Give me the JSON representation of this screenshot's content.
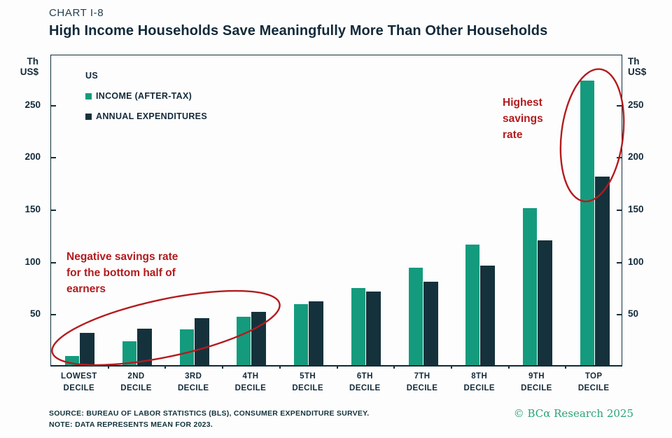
{
  "header": {
    "eyebrow": "CHART I-8",
    "title": "High Income Households Save Meaningfully More Than Other Households"
  },
  "axis": {
    "unit_line1": "Th",
    "unit_line2": "US$"
  },
  "legend": {
    "region": "US",
    "items": [
      {
        "label": "INCOME (AFTER-TAX)",
        "color": "#149b7d"
      },
      {
        "label": "ANNUAL EXPENDITURES",
        "color": "#15323c"
      }
    ]
  },
  "annotations": {
    "left_lines": [
      "Negative savings rate",
      "for the bottom half of",
      "earners"
    ],
    "right_lines": [
      "Highest",
      "savings",
      "rate"
    ]
  },
  "footer": {
    "source": "SOURCE: BUREAU OF LABOR STATISTICS (BLS), CONSUMER EXPENDITURE SURVEY.",
    "note": "NOTE: DATA REPRESENTS MEAN FOR 2023.",
    "copyright": "© BCα Research 2025"
  },
  "colors": {
    "income_green": "#149b7d",
    "expenditure_navy": "#15323c",
    "annotation_red": "#b31b1e",
    "brand_green": "#2aa477",
    "text_navy": "#132a3a"
  },
  "chart_data": {
    "type": "bar",
    "title": "High Income Households Save Meaningfully More Than Other Households",
    "xlabel": "",
    "ylabel": "Th US$",
    "ylim": [
      0,
      298
    ],
    "yticks": [
      50,
      100,
      150,
      200,
      250
    ],
    "grid": false,
    "legend_position": "top-left",
    "categories": [
      "LOWEST DECILE",
      "2ND DECILE",
      "3RD DECILE",
      "4TH DECILE",
      "5TH DECILE",
      "6TH DECILE",
      "7TH DECILE",
      "8TH DECILE",
      "9TH DECILE",
      "TOP DECILE"
    ],
    "categories_2line": [
      [
        "LOWEST",
        "DECILE"
      ],
      [
        "2ND",
        "DECILE"
      ],
      [
        "3RD",
        "DECILE"
      ],
      [
        "4TH",
        "DECILE"
      ],
      [
        "5TH",
        "DECILE"
      ],
      [
        "6TH",
        "DECILE"
      ],
      [
        "7TH",
        "DECILE"
      ],
      [
        "8TH",
        "DECILE"
      ],
      [
        "9TH",
        "DECILE"
      ],
      [
        "TOP",
        "DECILE"
      ]
    ],
    "series": [
      {
        "name": "INCOME (AFTER-TAX)",
        "color": "#149b7d",
        "values": [
          9,
          23,
          34,
          46,
          58,
          74,
          93,
          115,
          150,
          272
        ]
      },
      {
        "name": "ANNUAL EXPENDITURES",
        "color": "#15323c",
        "values": [
          31,
          35,
          45,
          51,
          61,
          70,
          80,
          95,
          119,
          180
        ]
      }
    ]
  }
}
